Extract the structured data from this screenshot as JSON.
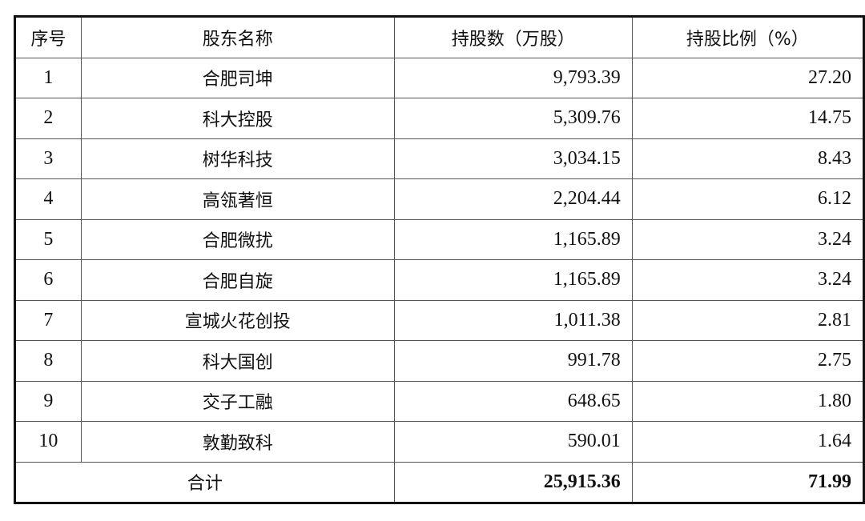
{
  "table": {
    "headers": [
      "序号",
      "股东名称",
      "持股数（万股）",
      "持股比例（%）"
    ],
    "rows": [
      {
        "no": "1",
        "name": "合肥司坤",
        "shares": "9,793.39",
        "ratio": "27.20"
      },
      {
        "no": "2",
        "name": "科大控股",
        "shares": "5,309.76",
        "ratio": "14.75"
      },
      {
        "no": "3",
        "name": "树华科技",
        "shares": "3,034.15",
        "ratio": "8.43"
      },
      {
        "no": "4",
        "name": "高瓴著恒",
        "shares": "2,204.44",
        "ratio": "6.12"
      },
      {
        "no": "5",
        "name": "合肥微扰",
        "shares": "1,165.89",
        "ratio": "3.24"
      },
      {
        "no": "6",
        "name": "合肥自旋",
        "shares": "1,165.89",
        "ratio": "3.24"
      },
      {
        "no": "7",
        "name": "宣城火花创投",
        "shares": "1,011.38",
        "ratio": "2.81"
      },
      {
        "no": "8",
        "name": "科大国创",
        "shares": "991.78",
        "ratio": "2.75"
      },
      {
        "no": "9",
        "name": "交子工融",
        "shares": "648.65",
        "ratio": "1.80"
      },
      {
        "no": "10",
        "name": "敦勤致科",
        "shares": "590.01",
        "ratio": "1.64"
      }
    ],
    "total": {
      "label": "合计",
      "shares": "25,915.36",
      "ratio": "71.99"
    }
  }
}
